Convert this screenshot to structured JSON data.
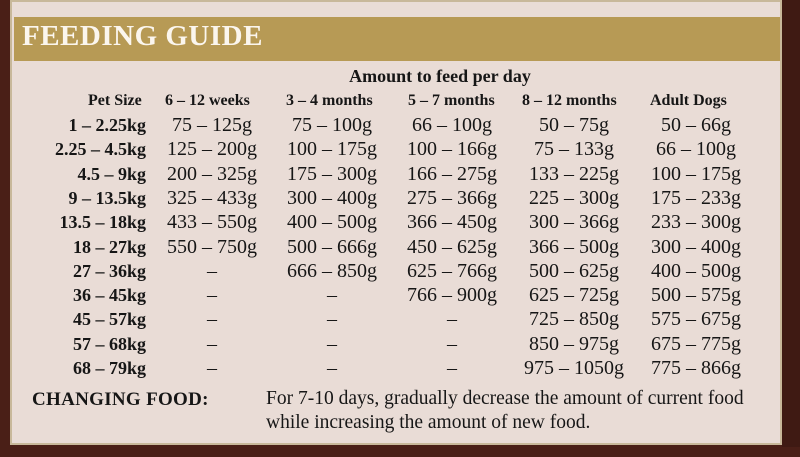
{
  "header": {
    "title": "FEEDING GUIDE"
  },
  "table": {
    "amount_heading": "Amount to feed per day",
    "columns": [
      "Pet Size",
      "6 – 12 weeks",
      "3 – 4 months",
      "5 – 7 months",
      "8 – 12 months",
      "Adult Dogs"
    ],
    "rows": [
      [
        "1 – 2.25kg",
        "75 – 125g",
        "75 – 100g",
        "66 – 100g",
        "50 – 75g",
        "50 – 66g"
      ],
      [
        "2.25 – 4.5kg",
        "125 – 200g",
        "100 – 175g",
        "100 – 166g",
        "75 – 133g",
        "66 – 100g"
      ],
      [
        "4.5 – 9kg",
        "200 – 325g",
        "175 – 300g",
        "166 – 275g",
        "133 – 225g",
        "100 – 175g"
      ],
      [
        "9 – 13.5kg",
        "325 – 433g",
        "300 – 400g",
        "275 – 366g",
        "225 – 300g",
        "175 – 233g"
      ],
      [
        "13.5 – 18kg",
        "433 – 550g",
        "400 – 500g",
        "366 – 450g",
        "300 – 366g",
        "233 – 300g"
      ],
      [
        "18 – 27kg",
        "550 – 750g",
        "500 – 666g",
        "450 – 625g",
        "366 – 500g",
        "300 – 400g"
      ],
      [
        "27 – 36kg",
        "–",
        "666 – 850g",
        "625 – 766g",
        "500 – 625g",
        "400 – 500g"
      ],
      [
        "36 – 45kg",
        "–",
        "–",
        "766 – 900g",
        "625 – 725g",
        "500 – 575g"
      ],
      [
        "45 – 57kg",
        "–",
        "–",
        "–",
        "725 – 850g",
        "575 – 675g"
      ],
      [
        "57 – 68kg",
        "–",
        "–",
        "–",
        "850 – 975g",
        "675 – 775g"
      ],
      [
        "68 – 79kg",
        "–",
        "–",
        "–",
        "975 – 1050g",
        "775 – 866g"
      ]
    ]
  },
  "changing_food": {
    "label": "CHANGING FOOD:",
    "text": "For 7-10 days, gradually decrease the amount of current food while increasing the amount of new food."
  }
}
